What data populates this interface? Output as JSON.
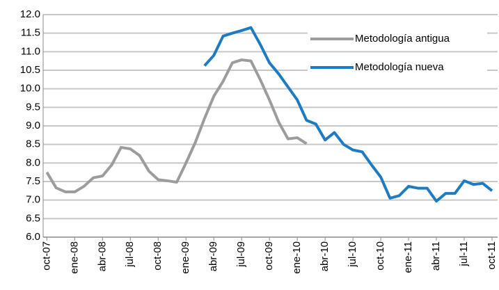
{
  "chart_data": {
    "type": "line",
    "categories": [
      "oct-07",
      null,
      null,
      "ene-08",
      null,
      null,
      "abr-08",
      null,
      null,
      "jul-08",
      null,
      null,
      "oct-08",
      null,
      null,
      "ene-09",
      null,
      null,
      "abr-09",
      null,
      null,
      "jul-09",
      null,
      null,
      "oct-09",
      null,
      null,
      "ene-10",
      null,
      null,
      "abr-10",
      null,
      null,
      "jul-10",
      null,
      null,
      "oct-10",
      null,
      null,
      "ene-11",
      null,
      null,
      "abr-11",
      null,
      null,
      "jul-11",
      null,
      null,
      "oct-11"
    ],
    "series": [
      {
        "name": "Metodología antigua",
        "color": "#9c9c9c",
        "values": [
          7.75,
          7.33,
          7.22,
          7.22,
          7.37,
          7.6,
          7.65,
          7.95,
          8.42,
          8.38,
          8.2,
          7.78,
          7.55,
          7.52,
          7.48,
          8.0,
          8.55,
          9.2,
          9.8,
          10.2,
          10.7,
          10.78,
          10.75,
          10.25,
          9.7,
          9.1,
          8.65,
          8.68,
          8.52,
          null,
          null,
          null,
          null,
          null,
          null,
          null,
          null,
          null,
          null,
          null,
          null,
          null,
          null,
          null,
          null,
          null,
          null,
          null,
          null
        ]
      },
      {
        "name": "Metodología nueva",
        "color": "#1f7bc1",
        "values": [
          null,
          null,
          null,
          null,
          null,
          null,
          null,
          null,
          null,
          null,
          null,
          null,
          null,
          null,
          null,
          null,
          null,
          10.62,
          10.9,
          11.42,
          11.5,
          11.57,
          11.65,
          11.2,
          10.7,
          10.4,
          10.05,
          9.7,
          9.15,
          9.05,
          8.62,
          8.82,
          8.5,
          8.35,
          8.3,
          7.95,
          7.62,
          7.05,
          7.12,
          7.37,
          7.32,
          7.32,
          6.97,
          7.18,
          7.18,
          7.52,
          7.42,
          7.45,
          7.25
        ]
      }
    ],
    "ylim": [
      6.0,
      12.0
    ],
    "yticks": [
      {
        "value": 6,
        "label": "6.0"
      },
      6.5,
      {
        "value": 7,
        "label": "7.0"
      },
      7.5,
      {
        "value": 8,
        "label": "8.0"
      },
      8.5,
      {
        "value": 9,
        "label": "9.0"
      },
      9.5,
      {
        "value": 10,
        "label": "10.0"
      },
      10.5,
      {
        "value": 11,
        "label": "11.0"
      },
      11.5,
      {
        "value": 12,
        "label": "12.0"
      }
    ],
    "grid": true,
    "legend": "top-right"
  }
}
